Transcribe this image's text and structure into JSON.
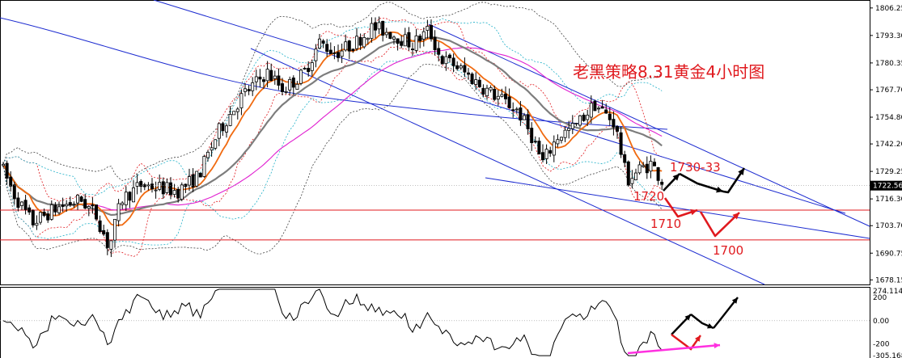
{
  "chart_data": {
    "type": "candlestick",
    "title": "老黑策略8.31黄金4小时图",
    "price_axis": {
      "ylim": [
        1676,
        1810
      ],
      "ticks": [
        1806.25,
        1793.3,
        1780.35,
        1767.7,
        1754.8,
        1742.2,
        1729.25,
        1716.3,
        1703.7,
        1690.75,
        1678.15
      ],
      "current_price": 1722.56
    },
    "horizontal_levels": [
      1711,
      1697
    ],
    "annotations": {
      "resistance_label": "1730-33",
      "levels": [
        "1720",
        "1710",
        "1700"
      ]
    },
    "oscillator": {
      "ylim": [
        -320,
        290
      ],
      "ticks": [
        274.1146,
        200,
        0.0,
        -200,
        -305.168
      ]
    },
    "colors": {
      "background": "#ffffff",
      "candle_up": "#ffffff",
      "candle_down": "#000000",
      "ma_fast": "#f06a10",
      "ma_slow": "#7d7d7d",
      "ma_long": "#e020d0",
      "channel": "#1c2bd0",
      "annotation": "#e0191e",
      "arrow_black": "#000000",
      "arrow_red": "#e0191e",
      "arrow_magenta": "#ff30e0"
    }
  }
}
